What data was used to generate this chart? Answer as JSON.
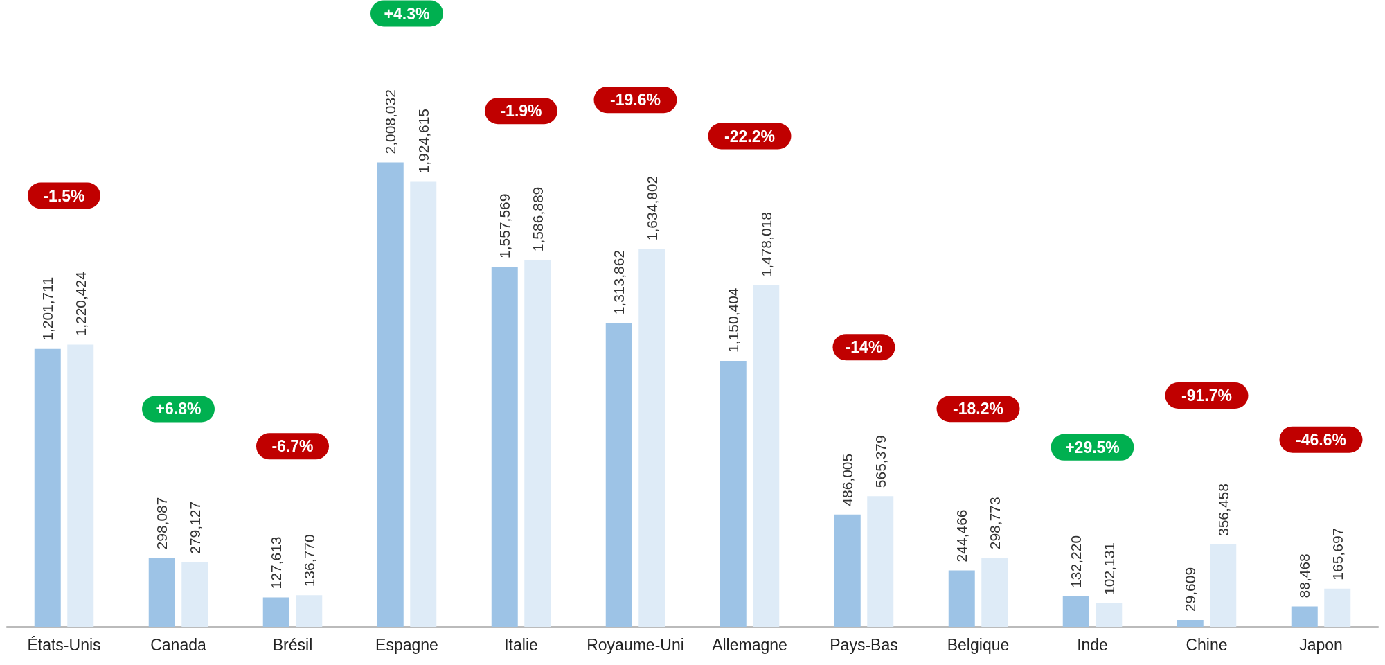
{
  "chart_data": {
    "type": "bar",
    "categories": [
      "États-Unis",
      "Canada",
      "Brésil",
      "Espagne",
      "Italie",
      "Royaume-Uni",
      "Allemagne",
      "Pays-Bas",
      "Belgique",
      "Inde",
      "Chine",
      "Japon"
    ],
    "series": [
      {
        "color": "#9dc3e6",
        "values": [
          1201711,
          298087,
          127613,
          2008032,
          1557569,
          1313862,
          1150404,
          486005,
          244466,
          132220,
          29609,
          88468
        ],
        "value_labels": [
          "1,201,711",
          "298,087",
          "127,613",
          "2,008,032",
          "1,557,569",
          "1,313,862",
          "1,150,404",
          "486,005",
          "244,466",
          "132,220",
          "29,609",
          "88,468"
        ]
      },
      {
        "color": "#deebf7",
        "values": [
          1220424,
          279127,
          136770,
          1924615,
          1586889,
          1634802,
          1478018,
          565379,
          298773,
          102131,
          356458,
          165697
        ],
        "value_labels": [
          "1,220,424",
          "279,127",
          "136,770",
          "1,924,615",
          "1,586,889",
          "1,634,802",
          "1,478,018",
          "565,379",
          "298,773",
          "102,131",
          "356,458",
          "165,697"
        ]
      }
    ],
    "annotations": [
      "-1.5%",
      "+6.8%",
      "-6.7%",
      "+4.3%",
      "-1.9%",
      "-19.6%",
      "-22.2%",
      "-14%",
      "-18.2%",
      "+29.5%",
      "-91.7%",
      "-46.6%"
    ]
  }
}
